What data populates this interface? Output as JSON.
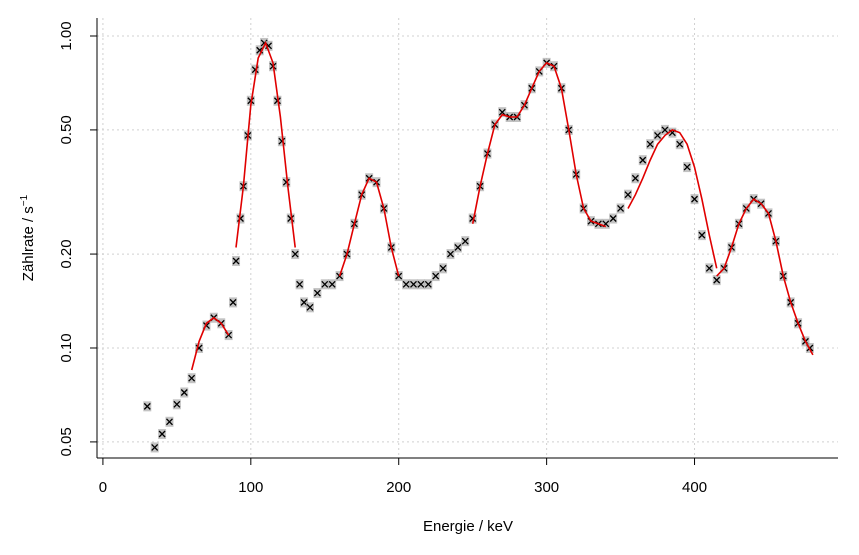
{
  "chart_data": {
    "type": "scatter",
    "x_label": "Energie / keV",
    "y_label": "Zählrate / s",
    "y_label_exponent": "−1",
    "log_y": true,
    "grid": true,
    "xlim": [
      -4,
      497
    ],
    "ylim": [
      0.0444,
      1.142
    ],
    "xticks": [
      0,
      100,
      200,
      300,
      400
    ],
    "yticks": [
      {
        "value": 0.05,
        "label": "0.05"
      },
      {
        "value": 0.1,
        "label": "0.10"
      },
      {
        "value": 0.2,
        "label": "0.20"
      },
      {
        "value": 0.5,
        "label": "0.50"
      },
      {
        "value": 1,
        "label": "1.00"
      }
    ],
    "x": [
      30,
      35,
      40,
      45,
      50,
      55,
      60,
      65,
      70,
      75,
      80,
      85,
      88,
      90,
      93,
      95,
      98,
      100,
      103,
      106,
      109,
      112,
      115,
      118,
      121,
      124,
      127,
      130,
      133,
      136,
      140,
      145,
      150,
      155,
      160,
      165,
      170,
      175,
      180,
      185,
      190,
      195,
      200,
      205,
      210,
      215,
      220,
      225,
      230,
      235,
      240,
      245,
      250,
      255,
      260,
      265,
      270,
      275,
      280,
      285,
      290,
      295,
      300,
      305,
      310,
      315,
      320,
      325,
      330,
      335,
      340,
      345,
      350,
      355,
      360,
      365,
      370,
      375,
      380,
      385,
      390,
      395,
      400,
      405,
      410,
      415,
      420,
      425,
      430,
      435,
      440,
      445,
      450,
      455,
      460,
      465,
      470,
      475,
      478
    ],
    "series": [
      {
        "type": "scatter",
        "color": "#000000",
        "error_color": "#aaaaaa",
        "values": [
          0.065,
          0.048,
          0.053,
          0.058,
          0.066,
          0.072,
          0.08,
          0.1,
          0.118,
          0.125,
          0.12,
          0.11,
          0.14,
          0.19,
          0.26,
          0.33,
          0.48,
          0.62,
          0.78,
          0.9,
          0.95,
          0.93,
          0.8,
          0.62,
          0.46,
          0.34,
          0.26,
          0.2,
          0.16,
          0.14,
          0.135,
          0.15,
          0.16,
          0.16,
          0.17,
          0.2,
          0.25,
          0.31,
          0.35,
          0.34,
          0.28,
          0.21,
          0.17,
          0.16,
          0.16,
          0.16,
          0.16,
          0.17,
          0.18,
          0.2,
          0.21,
          0.22,
          0.26,
          0.33,
          0.42,
          0.52,
          0.57,
          0.55,
          0.55,
          0.6,
          0.68,
          0.77,
          0.82,
          0.8,
          0.68,
          0.5,
          0.36,
          0.28,
          0.255,
          0.25,
          0.25,
          0.26,
          0.28,
          0.31,
          0.35,
          0.4,
          0.45,
          0.48,
          0.5,
          0.49,
          0.45,
          0.38,
          0.3,
          0.23,
          0.18,
          0.165,
          0.18,
          0.21,
          0.25,
          0.28,
          0.3,
          0.29,
          0.27,
          0.22,
          0.17,
          0.14,
          0.12,
          0.105,
          0.1
        ]
      },
      {
        "type": "line",
        "color": "#e00000",
        "x": [
          60,
          65,
          70,
          75,
          80,
          85,
          null,
          90,
          95,
          100,
          105,
          110,
          115,
          120,
          125,
          130,
          null,
          160,
          165,
          170,
          175,
          180,
          185,
          190,
          195,
          200,
          null,
          250,
          255,
          260,
          265,
          270,
          275,
          280,
          285,
          290,
          295,
          300,
          305,
          310,
          315,
          320,
          325,
          330,
          335,
          340,
          null,
          355,
          360,
          365,
          370,
          375,
          380,
          385,
          390,
          395,
          400,
          405,
          410,
          415,
          null,
          415,
          420,
          425,
          430,
          435,
          440,
          445,
          450,
          455,
          460,
          465,
          470,
          475,
          480
        ],
        "values": [
          0.085,
          0.105,
          0.12,
          0.125,
          0.12,
          0.11,
          null,
          0.21,
          0.33,
          0.6,
          0.85,
          0.95,
          0.82,
          0.55,
          0.33,
          0.21,
          null,
          0.17,
          0.2,
          0.25,
          0.31,
          0.35,
          0.34,
          0.28,
          0.21,
          0.17,
          null,
          0.25,
          0.33,
          0.42,
          0.52,
          0.56,
          0.55,
          0.55,
          0.6,
          0.68,
          0.77,
          0.82,
          0.8,
          0.68,
          0.5,
          0.36,
          0.28,
          0.255,
          0.25,
          0.245,
          null,
          0.28,
          0.31,
          0.35,
          0.4,
          0.45,
          0.48,
          0.5,
          0.49,
          0.45,
          0.38,
          0.3,
          0.23,
          0.18,
          null,
          0.17,
          0.18,
          0.21,
          0.25,
          0.28,
          0.3,
          0.29,
          0.27,
          0.22,
          0.17,
          0.14,
          0.12,
          0.105,
          0.095
        ]
      }
    ]
  }
}
